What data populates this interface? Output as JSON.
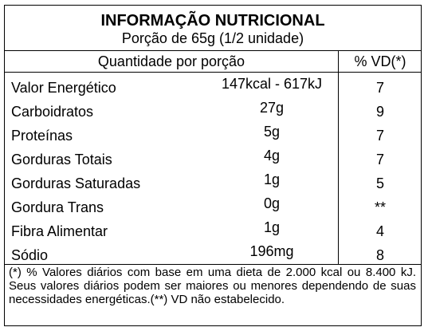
{
  "title": "INFORMAÇÃO NUTRICIONAL",
  "serving": "Porção de 65g (1/2 unidade)",
  "headers": {
    "quantity": "Quantidade por porção",
    "vd": "% VD(*)"
  },
  "rows": [
    {
      "nutrient": "Valor Energético",
      "amount": "147kcal - 617kJ",
      "vd": "7"
    },
    {
      "nutrient": "Carboidratos",
      "amount": "27g",
      "vd": "9"
    },
    {
      "nutrient": "Proteínas",
      "amount": "5g",
      "vd": "7"
    },
    {
      "nutrient": "Gorduras Totais",
      "amount": "4g",
      "vd": "7"
    },
    {
      "nutrient": "Gorduras Saturadas",
      "amount": "1g",
      "vd": "5"
    },
    {
      "nutrient": "Gordura Trans",
      "amount": "0g",
      "vd": "**"
    },
    {
      "nutrient": "Fibra Alimentar",
      "amount": "1g",
      "vd": "4"
    },
    {
      "nutrient": "Sódio",
      "amount": "196mg",
      "vd": "8"
    }
  ],
  "footnote": "(*) % Valores diários com base em uma dieta de 2.000 kcal ou 8.400 kJ. Seus valores diários podem ser maiores ou menores dependendo de suas necessidades energéticas.(**) VD não estabelecido."
}
